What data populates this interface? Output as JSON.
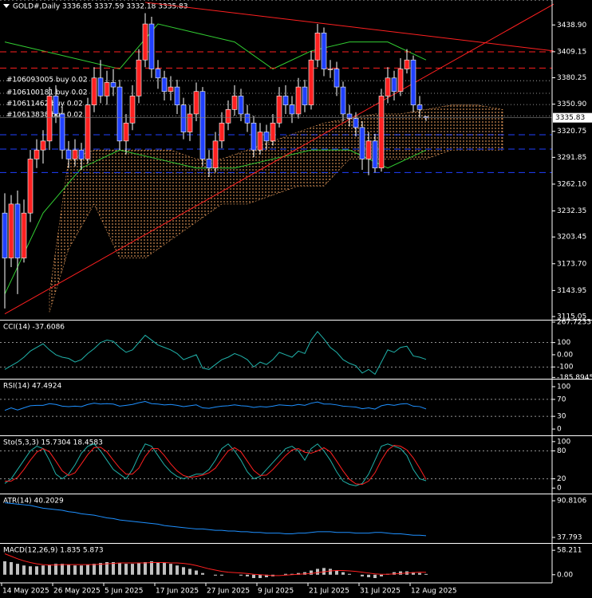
{
  "chart_data": [
    {
      "type": "candlestick",
      "title": "GOLD#,Daily 3336.85 3337.59 3332.18 3335.83",
      "categories": [
        "14 May 2025",
        null,
        null,
        null,
        null,
        null,
        null,
        null,
        "26 May 2025",
        null,
        null,
        null,
        null,
        null,
        null,
        null,
        "5 Jun 2025",
        null,
        null,
        null,
        null,
        null,
        null,
        null,
        "17 Jun 2025",
        null,
        null,
        null,
        null,
        null,
        null,
        null,
        "27 Jun 2025",
        null,
        null,
        null,
        null,
        null,
        null,
        null,
        "9 Jul 2025",
        null,
        null,
        null,
        null,
        null,
        null,
        null,
        "21 Jul 2025",
        null,
        null,
        null,
        null,
        null,
        null,
        null,
        "31 Jul 2025",
        null,
        null,
        null,
        null,
        null,
        null,
        null,
        "12 Aug 2025",
        null,
        null
      ],
      "open": [
        3230,
        3180,
        3240,
        3180,
        3230,
        3290,
        3300,
        3310,
        3360,
        3340,
        3300,
        3290,
        3300,
        3290,
        3350,
        3380,
        3360,
        3375,
        3370,
        3310,
        3330,
        3360,
        3400,
        3440,
        3390,
        3380,
        3365,
        3370,
        3350,
        3320,
        3340,
        3365,
        3290,
        3280,
        3310,
        3330,
        3345,
        3360,
        3340,
        3330,
        3300,
        3320,
        3310,
        3330,
        3360,
        3350,
        3340,
        3370,
        3350,
        3400,
        3430,
        3390,
        3390,
        3370,
        3340,
        3335,
        3325,
        3290,
        3310,
        3280,
        3360,
        3380,
        3365,
        3390,
        3400,
        3350,
        3336.85
      ],
      "high": [
        3252,
        3250,
        3255,
        3245,
        3300,
        3312,
        3322,
        3370,
        3372,
        3348,
        3310,
        3312,
        3308,
        3358,
        3392,
        3400,
        3388,
        3390,
        3378,
        3340,
        3372,
        3412,
        3452,
        3448,
        3400,
        3388,
        3382,
        3378,
        3358,
        3350,
        3375,
        3370,
        3300,
        3320,
        3342,
        3355,
        3372,
        3368,
        3350,
        3338,
        3330,
        3328,
        3340,
        3370,
        3372,
        3360,
        3380,
        3378,
        3410,
        3440,
        3436,
        3400,
        3398,
        3376,
        3350,
        3342,
        3332,
        3320,
        3318,
        3368,
        3392,
        3388,
        3402,
        3412,
        3405,
        3360,
        3337.59
      ],
      "low": [
        3124,
        3170,
        3140,
        3175,
        3220,
        3280,
        3285,
        3300,
        3330,
        3290,
        3280,
        3282,
        3278,
        3285,
        3342,
        3352,
        3350,
        3360,
        3300,
        3295,
        3322,
        3352,
        3392,
        3380,
        3368,
        3355,
        3355,
        3340,
        3312,
        3310,
        3332,
        3282,
        3270,
        3275,
        3302,
        3322,
        3338,
        3332,
        3320,
        3292,
        3295,
        3300,
        3305,
        3325,
        3340,
        3330,
        3335,
        3342,
        3345,
        3392,
        3382,
        3380,
        3360,
        3332,
        3326,
        3315,
        3278,
        3272,
        3275,
        3276,
        3352,
        3355,
        3360,
        3385,
        3342,
        3336,
        3332.18
      ],
      "close": [
        3180,
        3240,
        3180,
        3230,
        3290,
        3300,
        3310,
        3360,
        3340,
        3300,
        3290,
        3300,
        3290,
        3350,
        3380,
        3360,
        3375,
        3370,
        3310,
        3330,
        3360,
        3400,
        3440,
        3390,
        3380,
        3365,
        3370,
        3350,
        3320,
        3340,
        3365,
        3290,
        3280,
        3310,
        3330,
        3345,
        3360,
        3340,
        3330,
        3300,
        3320,
        3310,
        3330,
        3360,
        3350,
        3340,
        3370,
        3350,
        3400,
        3430,
        3390,
        3390,
        3370,
        3340,
        3335,
        3325,
        3290,
        3310,
        3280,
        3360,
        3380,
        3365,
        3390,
        3400,
        3350,
        3345,
        3335.83
      ],
      "up_color": "#ff2020",
      "down_color": "#2040ff",
      "ylim": [
        3112.4,
        3466.6
      ],
      "yticks": [
        {
          "value": 3438.9,
          "label": "3438.90"
        },
        {
          "value": 3409.15,
          "label": "3409.15"
        },
        {
          "value": 3380.25,
          "label": "3380.25"
        },
        {
          "value": 3350.9,
          "label": "3350.90"
        },
        3320.75,
        3291.85,
        {
          "value": 3262.1,
          "label": "3262.10"
        },
        3232.35,
        3203.45,
        {
          "value": 3173.7,
          "label": "3173.70"
        },
        3143.95,
        3115.05
      ],
      "cloud": {
        "color": "#f4a460",
        "x": [
          7,
          10,
          14,
          18,
          22,
          26,
          30,
          34,
          38,
          42,
          46,
          50,
          54,
          58,
          62,
          66,
          70,
          74,
          78
        ],
        "upper": [
          3140,
          3290,
          3300,
          3300,
          3300,
          3300,
          3290,
          3290,
          3300,
          3310,
          3320,
          3330,
          3335,
          3340,
          3340,
          3345,
          3350,
          3350,
          3345
        ],
        "lower": [
          3120,
          3190,
          3240,
          3180,
          3180,
          3200,
          3220,
          3240,
          3240,
          3250,
          3260,
          3260,
          3290,
          3290,
          3290,
          3290,
          3300,
          3300,
          3300
        ]
      },
      "bands": {
        "color": "#32cd32",
        "x": [
          0,
          6,
          12,
          18,
          24,
          30,
          36,
          42,
          48,
          54,
          60,
          66
        ],
        "upper": [
          3420,
          3410,
          3400,
          3390,
          3440,
          3430,
          3420,
          3390,
          3410,
          3420,
          3420,
          3400
        ],
        "lower": [
          3140,
          3230,
          3280,
          3300,
          3290,
          3280,
          3280,
          3290,
          3300,
          3300,
          3280,
          3300
        ]
      },
      "trendlines": [
        {
          "color": "#ff2020",
          "x": [
            0,
            86
          ],
          "y": [
            3118,
            3462
          ]
        },
        {
          "color": "#ff2020",
          "x": [
            22,
            86
          ],
          "y": [
            3464,
            3410
          ]
        }
      ],
      "levels": [
        {
          "value": 3409,
          "color": "#ff2020"
        },
        {
          "value": 3391,
          "color": "#ff2020"
        },
        {
          "value": 3317,
          "color": "#2040ff"
        },
        {
          "value": 3301,
          "color": "#2040ff"
        },
        {
          "value": 3275,
          "color": "#2040ff"
        }
      ],
      "orders": [
        {
          "label": "#106093005 buy 0.02",
          "price": 3377
        },
        {
          "label": "#106100181 buy 0.02",
          "price": 3363
        },
        {
          "label": "#10611462 buy 0.02",
          "price": 3350.5
        },
        {
          "label": "#10613838 buy 0.02",
          "price": 3338
        }
      ]
    },
    {
      "type": "line",
      "title": "CCI(14) -37.6086",
      "ylim": [
        -190,
        274
      ],
      "yticks": [
        267.7233,
        100,
        {
          "value": 0,
          "label": "0.00"
        },
        -100,
        -185.8945
      ],
      "levels": [
        100,
        -100
      ],
      "color": "#20b2aa",
      "values": [
        -120,
        -90,
        -60,
        -20,
        30,
        60,
        90,
        40,
        0,
        -20,
        -30,
        -60,
        -40,
        10,
        50,
        100,
        120,
        110,
        60,
        20,
        40,
        100,
        160,
        120,
        80,
        60,
        40,
        10,
        -40,
        -20,
        0,
        -110,
        -120,
        -80,
        -40,
        -20,
        10,
        -10,
        -40,
        -100,
        -60,
        -80,
        -40,
        20,
        0,
        -20,
        30,
        10,
        120,
        190,
        130,
        60,
        20,
        -40,
        -70,
        -90,
        -150,
        -120,
        -160,
        -60,
        40,
        20,
        60,
        70,
        -10,
        -20,
        -37.6086
      ]
    },
    {
      "type": "line",
      "title": "RSI(14) 47.4924",
      "ylim": [
        -13,
        115
      ],
      "yticks": [
        100,
        70,
        30,
        0
      ],
      "levels": [
        70,
        30
      ],
      "color": "#1e90ff",
      "values": [
        44,
        50,
        45,
        50,
        55,
        56,
        56,
        60,
        58,
        54,
        53,
        54,
        53,
        58,
        61,
        59,
        60,
        59,
        54,
        56,
        58,
        62,
        65,
        60,
        59,
        57,
        58,
        56,
        53,
        55,
        57,
        50,
        49,
        52,
        54,
        55,
        57,
        55,
        54,
        51,
        53,
        52,
        54,
        57,
        56,
        55,
        58,
        56,
        61,
        64,
        59,
        59,
        57,
        54,
        53,
        52,
        48,
        50,
        47,
        55,
        58,
        56,
        59,
        60,
        54,
        53,
        47.4924
      ]
    },
    {
      "type": "line",
      "title": "Sto(5,3,3) 15.7304 18.4583",
      "ylim": [
        -10,
        110
      ],
      "yticks": [
        100,
        80,
        20,
        0
      ],
      "levels": [
        80,
        20
      ],
      "series": [
        {
          "color": "#20b2aa",
          "values": [
            10,
            20,
            40,
            60,
            80,
            90,
            85,
            60,
            30,
            20,
            30,
            50,
            75,
            90,
            95,
            80,
            60,
            40,
            30,
            20,
            40,
            70,
            95,
            90,
            70,
            50,
            35,
            25,
            20,
            25,
            30,
            30,
            40,
            60,
            85,
            95,
            80,
            60,
            35,
            20,
            25,
            40,
            55,
            70,
            85,
            90,
            80,
            60,
            85,
            95,
            80,
            60,
            35,
            15,
            8,
            5,
            10,
            30,
            60,
            90,
            95,
            90,
            85,
            70,
            40,
            20,
            15.7304
          ]
        },
        {
          "color": "#ff2020",
          "values": [
            15,
            15,
            23,
            40,
            60,
            77,
            85,
            78,
            58,
            37,
            27,
            33,
            52,
            72,
            87,
            88,
            78,
            60,
            43,
            30,
            30,
            43,
            68,
            85,
            85,
            70,
            52,
            37,
            27,
            23,
            25,
            28,
            33,
            43,
            62,
            80,
            87,
            78,
            58,
            38,
            27,
            28,
            40,
            55,
            70,
            82,
            85,
            77,
            75,
            80,
            87,
            78,
            58,
            37,
            19,
            9,
            8,
            15,
            33,
            60,
            82,
            92,
            90,
            82,
            65,
            43,
            18.4583
          ]
        }
      ]
    },
    {
      "type": "line",
      "title": "ATR(14) 40.2029",
      "ylim": [
        30.9,
        98.9
      ],
      "yticks": [
        90.8106,
        37.793
      ],
      "color": "#1e90ff",
      "values": [
        88,
        87,
        86,
        85,
        84,
        82,
        80,
        79,
        78,
        77,
        75,
        74,
        72,
        71,
        70,
        68,
        66,
        65,
        63,
        62,
        61,
        60,
        59,
        58,
        57,
        55,
        54,
        53,
        52,
        51,
        50,
        50,
        49,
        48,
        48,
        47,
        47,
        46,
        46,
        45,
        45,
        44,
        44,
        44,
        43,
        43,
        44,
        44,
        45,
        46,
        46,
        46,
        45,
        45,
        45,
        44,
        44,
        44,
        45,
        45,
        44,
        43,
        43,
        42,
        41,
        41,
        40.2029
      ]
    },
    {
      "type": "macd",
      "title": "MACD(12,26,9) 1.835 5.873",
      "ylim": [
        -19.4,
        71.8
      ],
      "yticks": [
        58.211,
        {
          "value": 0,
          "label": "0.00"
        }
      ],
      "color": "#c0c0c0",
      "signal_color": "#ff2020",
      "values": [
        32,
        30,
        26,
        22,
        20,
        20,
        22,
        24,
        26,
        26,
        24,
        22,
        22,
        24,
        26,
        28,
        30,
        30,
        28,
        26,
        26,
        28,
        30,
        32,
        30,
        28,
        26,
        22,
        18,
        14,
        10,
        4,
        0,
        -2,
        -2,
        0,
        0,
        -2,
        -4,
        -8,
        -8,
        -6,
        -4,
        0,
        2,
        2,
        4,
        6,
        10,
        14,
        16,
        14,
        10,
        6,
        2,
        0,
        -4,
        -6,
        -8,
        -4,
        2,
        6,
        8,
        8,
        6,
        4,
        1.835
      ],
      "signal": [
        50,
        44,
        38,
        33,
        29,
        26,
        24,
        23,
        23,
        24,
        24,
        24,
        24,
        24,
        24,
        25,
        26,
        27,
        28,
        28,
        28,
        28,
        28,
        29,
        29,
        29,
        28,
        28,
        27,
        25,
        22,
        18,
        14,
        11,
        8,
        6,
        5,
        4,
        3,
        1,
        0,
        -1,
        -2,
        -2,
        -1,
        0,
        1,
        2,
        3,
        5,
        7,
        9,
        10,
        10,
        9,
        8,
        6,
        4,
        2,
        1,
        1,
        2,
        3,
        4,
        5,
        6,
        5.873
      ]
    }
  ]
}
